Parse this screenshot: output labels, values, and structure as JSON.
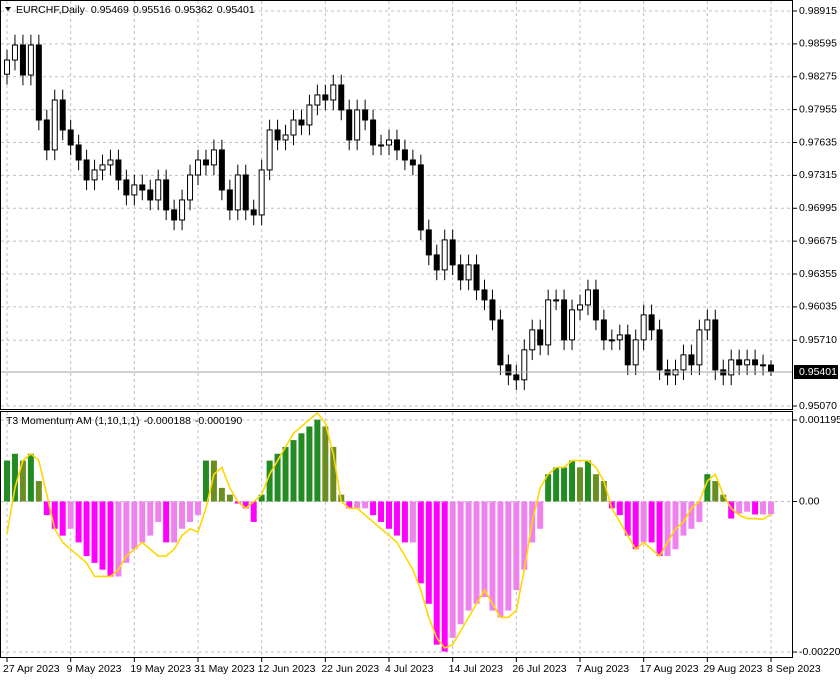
{
  "chart_data": [
    {
      "type": "candlestick",
      "title": "EURCHF,Daily",
      "categories": [
        "27 Apr 2023",
        null,
        null,
        null,
        null,
        null,
        null,
        null,
        "9 May 2023",
        null,
        null,
        null,
        null,
        null,
        null,
        null,
        "19 May 2023",
        null,
        null,
        null,
        null,
        null,
        null,
        null,
        "31 May 2023",
        null,
        null,
        null,
        null,
        null,
        null,
        null,
        "12 Jun 2023",
        null,
        null,
        null,
        null,
        null,
        null,
        null,
        "22 Jun 2023",
        null,
        null,
        null,
        null,
        null,
        null,
        null,
        "4 Jul 2023",
        null,
        null,
        null,
        null,
        null,
        null,
        null,
        "14 Jul 2023",
        null,
        null,
        null,
        null,
        null,
        null,
        null,
        "26 Jul 2023",
        null,
        null,
        null,
        null,
        null,
        null,
        null,
        "7 Aug 2023",
        null,
        null,
        null,
        null,
        null,
        null,
        null,
        "17 Aug 2023",
        null,
        null,
        null,
        null,
        null,
        null,
        null,
        "29 Aug 2023",
        null,
        null,
        null,
        null,
        null,
        null,
        null,
        "8 Sep 2023"
      ],
      "open": [
        0.983,
        0.98438,
        0.98584,
        0.98292,
        0.98584,
        0.97854,
        0.97563,
        0.98049,
        0.97757,
        0.97611,
        0.97465,
        0.97271,
        0.97368,
        0.97417,
        0.97465,
        0.97271,
        0.97125,
        0.97222,
        0.97173,
        0.97076,
        0.97271,
        0.96979,
        0.96881,
        0.97076,
        0.97319,
        0.97465,
        0.97417,
        0.97563,
        0.97173,
        0.96979,
        0.97319,
        0.96979,
        0.9693,
        0.97368,
        0.97757,
        0.9766,
        0.97708,
        0.97854,
        0.97806,
        0.98,
        0.98098,
        0.98049,
        0.98195,
        0.97952,
        0.9766,
        0.97952,
        0.97854,
        0.97611,
        0.97611,
        0.9766,
        0.97563,
        0.97465,
        0.97417,
        0.96784,
        0.96541,
        0.96395,
        0.96687,
        0.96444,
        0.96298,
        0.96444,
        0.962,
        0.96103,
        0.95908,
        0.95471,
        0.95373,
        0.95325,
        0.95617,
        0.95811,
        0.95665,
        0.96103,
        0.96103,
        0.95714,
        0.96006,
        0.96054,
        0.962,
        0.95908,
        0.95714,
        0.95714,
        0.95762,
        0.95471,
        0.95714,
        0.95957,
        0.95811,
        0.95422,
        0.95373,
        0.95422,
        0.95568,
        0.95471,
        0.95811,
        0.95908,
        0.95422,
        0.95373,
        0.95519,
        0.95471,
        0.95519,
        0.95471,
        0.95469
      ],
      "high": [
        0.98538,
        0.98684,
        0.98684,
        0.98684,
        0.98684,
        0.97954,
        0.98149,
        0.98149,
        0.97857,
        0.97711,
        0.97565,
        0.97468,
        0.97517,
        0.97565,
        0.97565,
        0.97371,
        0.97322,
        0.97322,
        0.97273,
        0.97371,
        0.97371,
        0.97079,
        0.97176,
        0.97419,
        0.97565,
        0.97565,
        0.97663,
        0.97663,
        0.97273,
        0.97419,
        0.97419,
        0.97079,
        0.97468,
        0.97857,
        0.97857,
        0.97808,
        0.97954,
        0.97954,
        0.981,
        0.98198,
        0.98198,
        0.98295,
        0.98295,
        0.98052,
        0.98052,
        0.98052,
        0.97954,
        0.97711,
        0.9776,
        0.9776,
        0.97663,
        0.97565,
        0.97517,
        0.96884,
        0.96641,
        0.96787,
        0.96787,
        0.96544,
        0.96544,
        0.96544,
        0.963,
        0.96203,
        0.96008,
        0.95571,
        0.95473,
        0.95717,
        0.95911,
        0.95911,
        0.96203,
        0.96203,
        0.96203,
        0.96106,
        0.96154,
        0.963,
        0.963,
        0.96008,
        0.95814,
        0.95862,
        0.95862,
        0.95814,
        0.96057,
        0.96057,
        0.95911,
        0.95522,
        0.95522,
        0.95668,
        0.95668,
        0.95911,
        0.96008,
        0.96008,
        0.95522,
        0.95619,
        0.95619,
        0.95619,
        0.95619,
        0.95571,
        0.95516
      ],
      "low": [
        0.982,
        0.98338,
        0.98192,
        0.98192,
        0.97754,
        0.97463,
        0.97463,
        0.97657,
        0.97511,
        0.97365,
        0.97171,
        0.97171,
        0.97268,
        0.97317,
        0.97171,
        0.97025,
        0.97025,
        0.97073,
        0.96976,
        0.96976,
        0.96879,
        0.96781,
        0.96781,
        0.96976,
        0.97219,
        0.97317,
        0.97317,
        0.97073,
        0.96879,
        0.96879,
        0.96879,
        0.9683,
        0.9683,
        0.97268,
        0.9756,
        0.9756,
        0.97608,
        0.97706,
        0.97706,
        0.979,
        0.97949,
        0.97949,
        0.97852,
        0.9756,
        0.9756,
        0.97754,
        0.97511,
        0.97511,
        0.97511,
        0.97463,
        0.97365,
        0.97317,
        0.96684,
        0.96441,
        0.96295,
        0.96295,
        0.96344,
        0.96198,
        0.96198,
        0.961,
        0.96003,
        0.95808,
        0.95371,
        0.95273,
        0.95225,
        0.95225,
        0.95517,
        0.95565,
        0.95565,
        0.96003,
        0.95614,
        0.95614,
        0.95906,
        0.95954,
        0.95808,
        0.95614,
        0.95614,
        0.95614,
        0.95371,
        0.95371,
        0.95614,
        0.95711,
        0.95322,
        0.95273,
        0.95273,
        0.95322,
        0.95371,
        0.95371,
        0.95711,
        0.95322,
        0.95273,
        0.95273,
        0.95371,
        0.95371,
        0.95371,
        0.95369,
        0.95362
      ],
      "close": [
        0.98438,
        0.98584,
        0.98292,
        0.98584,
        0.97854,
        0.97563,
        0.98049,
        0.97757,
        0.97611,
        0.97465,
        0.97271,
        0.97368,
        0.97417,
        0.97465,
        0.97271,
        0.97125,
        0.97222,
        0.97173,
        0.97076,
        0.97271,
        0.96979,
        0.96881,
        0.97076,
        0.97319,
        0.97465,
        0.97417,
        0.97563,
        0.97173,
        0.96979,
        0.97319,
        0.96979,
        0.9693,
        0.97368,
        0.97757,
        0.9766,
        0.97708,
        0.97854,
        0.97806,
        0.98,
        0.98098,
        0.98049,
        0.98195,
        0.97952,
        0.9766,
        0.97952,
        0.97854,
        0.97611,
        0.97611,
        0.9766,
        0.97563,
        0.97465,
        0.97417,
        0.96784,
        0.96541,
        0.96395,
        0.96687,
        0.96444,
        0.96298,
        0.96444,
        0.962,
        0.96103,
        0.95908,
        0.95471,
        0.95373,
        0.95325,
        0.95617,
        0.95811,
        0.95665,
        0.96103,
        0.96103,
        0.95714,
        0.96006,
        0.96054,
        0.962,
        0.95908,
        0.95714,
        0.95714,
        0.95762,
        0.95471,
        0.95714,
        0.95957,
        0.95811,
        0.95422,
        0.95373,
        0.95422,
        0.95568,
        0.95471,
        0.95811,
        0.95908,
        0.95422,
        0.95373,
        0.95519,
        0.95471,
        0.95519,
        0.95471,
        0.95469,
        0.95401
      ],
      "up_color": "#ffffff",
      "down_color": "#000000",
      "ylim": [
        0.95041,
        0.98993
      ],
      "yticks": [
        0.98915,
        0.98595,
        0.98275,
        0.97955,
        0.97635,
        0.97315,
        0.96995,
        0.96675,
        0.96355,
        0.96035,
        {
          "value": 0.9571,
          "label": "0.95710"
        },
        {
          "value": 0.9507,
          "label": "0.95070"
        }
      ],
      "grid": true
    },
    {
      "type": "bar",
      "title": "T3 Momentum AM (1,10,1,1)",
      "series": [
        {
          "colors": [
            "#228b22",
            "#228b22",
            "#6b8e23",
            "#228b22",
            "#6b8e23",
            "#ff00ff",
            "#ff00ff",
            "#ff00ff",
            "#ee82ee",
            "#ff00ff",
            "#ff00ff",
            "#ff00ff",
            "#ff00ff",
            "#ff00ff",
            "#ee82ee",
            "#ee82ee",
            "#ee82ee",
            "#ee82ee",
            "#ee82ee",
            "#ee82ee",
            "#ff00ff",
            "#ee82ee",
            "#ee82ee",
            "#ee82ee",
            "#ee82ee",
            "#228b22",
            "#6b8e23",
            "#6b8e23",
            "#6b8e23",
            "#ff00ff",
            "#ff00ff",
            "#ff00ff",
            "#228b22",
            "#228b22",
            "#228b22",
            "#228b22",
            "#228b22",
            "#228b22",
            "#228b22",
            "#228b22",
            "#6b8e23",
            "#6b8e23",
            "#6b8e23",
            "#ff00ff",
            "#ee82ee",
            "#ee82ee",
            "#ff00ff",
            "#ff00ff",
            "#ff00ff",
            "#ff00ff",
            "#ff00ff",
            "#ee82ee",
            "#ff00ff",
            "#ff00ff",
            "#ff00ff",
            "#ff00ff",
            "#ee82ee",
            "#ee82ee",
            "#ee82ee",
            "#ee82ee",
            "#ee82ee",
            "#ee82ee",
            "#ee82ee",
            "#ee82ee",
            "#ee82ee",
            "#ee82ee",
            "#ee82ee",
            "#ee82ee",
            "#228b22",
            "#228b22",
            "#228b22",
            "#228b22",
            "#6b8e23",
            "#228b22",
            "#6b8e23",
            "#6b8e23",
            "#ff00ff",
            "#ff00ff",
            "#ff00ff",
            "#ff00ff",
            "#ee82ee",
            "#ff00ff",
            "#ff00ff",
            "#ee82ee",
            "#ee82ee",
            "#ee82ee",
            "#ee82ee",
            "#ee82ee",
            "#228b22",
            "#6b8e23",
            "#6b8e23",
            "#ff00ff",
            "#ee82ee",
            "#ee82ee",
            "#ff00ff",
            "#ee82ee",
            "#ee82ee"
          ],
          "values": [
            0.0006,
            0.0007,
            0.0006,
            0.0007,
            0.0003,
            -0.0002,
            -0.0004,
            -0.0005,
            -0.0004,
            -0.0006,
            -0.0008,
            -0.0009,
            -0.001,
            -0.0011,
            -0.0011,
            -0.0009,
            -0.0007,
            -0.0006,
            -0.0005,
            -0.0003,
            -0.0006,
            -0.0006,
            -0.0004,
            -0.0003,
            -0.0002,
            0.0006,
            0.0006,
            0.0002,
            0.0001,
            -3e-05,
            -0.0001,
            -0.0003,
            0.0001,
            0.0006,
            0.0007,
            0.0008,
            0.0009,
            0.001,
            0.0011,
            0.0012,
            0.0011,
            0.0008,
            0.0001,
            -0.0001,
            -0.0001,
            -0.0001,
            -0.0002,
            -0.0003,
            -0.0004,
            -0.0005,
            -0.0006,
            -0.0006,
            -0.0012,
            -0.0015,
            -0.0021,
            -0.0022,
            -0.002,
            -0.0018,
            -0.0016,
            -0.0015,
            -0.0014,
            -0.0016,
            -0.0017,
            -0.0016,
            -0.0013,
            -0.001,
            -0.0006,
            -0.0004,
            0.0004,
            0.0005,
            0.0005,
            0.0006,
            0.0005,
            0.0006,
            0.0004,
            0.0003,
            -0.0001,
            -0.0002,
            -0.0005,
            -0.0007,
            -0.0006,
            -0.0006,
            -0.0008,
            -0.0008,
            -0.0007,
            -0.0005,
            -0.0004,
            -0.0003,
            0.0004,
            0.0003,
            0.0001,
            -0.00025,
            -0.00018,
            -0.00015,
            -0.00019,
            -0.00019,
            -0.000188
          ]
        },
        {
          "type": "line",
          "color": "#ffd700",
          "values": [
            -0.00047,
            0.0002,
            0.0006,
            0.0007,
            0.0006,
            0.0001,
            -0.0004,
            -0.0006,
            -0.0007,
            -0.0008,
            -0.0009,
            -0.0011,
            -0.0011,
            -0.0011,
            -0.001,
            -0.0008,
            -0.0007,
            -0.0006,
            -0.0007,
            -0.0008,
            -0.0008,
            -0.0007,
            -0.0005,
            -0.0004,
            -0.00045,
            -0.0001,
            0.0004,
            0.0005,
            0.0002,
            0,
            -0.0001,
            0,
            0.0001,
            0.0004,
            0.0006,
            0.0008,
            0.001,
            0.0011,
            0.0012,
            0.0013,
            0.00115,
            0.0007,
            0,
            -0.0001,
            -0.0001,
            -0.0002,
            -0.0003,
            -0.0004,
            -0.0005,
            -0.0006,
            -0.0008,
            -0.001,
            -0.0013,
            -0.0017,
            -0.002,
            -0.00215,
            -0.0021,
            -0.0019,
            -0.0017,
            -0.0015,
            -0.0013,
            -0.0015,
            -0.0017,
            -0.0017,
            -0.0016,
            -0.001,
            -0.0003,
            0.0002,
            0.0004,
            0.0005,
            0.0005,
            0.0006,
            0.0006,
            0.0006,
            0.0005,
            0.0003,
            -0.0001,
            -0.0003,
            -0.0005,
            -0.0007,
            -0.0006,
            -0.0007,
            -0.0008,
            -0.0006,
            -0.0004,
            -0.0003,
            -0.0001,
            0,
            0.0003,
            0.0004,
            0.0001,
            -0.0001,
            -0.0002,
            -0.00025,
            -0.00025,
            -0.00026,
            -0.00019
          ],
          "value_labels": [
            null,
            null,
            null,
            null,
            null,
            null,
            null,
            null,
            null,
            null,
            null,
            null,
            null,
            null,
            null,
            null,
            null,
            null,
            null,
            null,
            null,
            null,
            null,
            null,
            null,
            null,
            null,
            null,
            null,
            null,
            null,
            null,
            null,
            null,
            null,
            null,
            null,
            null,
            null,
            null,
            null,
            null,
            null,
            null,
            null,
            null,
            null,
            null,
            null,
            null,
            null,
            null,
            null,
            null,
            null,
            null,
            null,
            null,
            null,
            null,
            null,
            null,
            null,
            null,
            null,
            null,
            null,
            null,
            null,
            null,
            null,
            null,
            null,
            null,
            null,
            null,
            null,
            null,
            null,
            null,
            null,
            null,
            null,
            null,
            null,
            null,
            null,
            null,
            null,
            null,
            null,
            null,
            null,
            null,
            null,
            null,
            "-0.000190"
          ]
        }
      ],
      "ylim": [
        -0.002281,
        0.001298
      ],
      "yticks": [
        0.001195,
        {
          "value": 0,
          "label": "0.00"
        },
        -0.002208
      ],
      "grid": true
    }
  ]
}
